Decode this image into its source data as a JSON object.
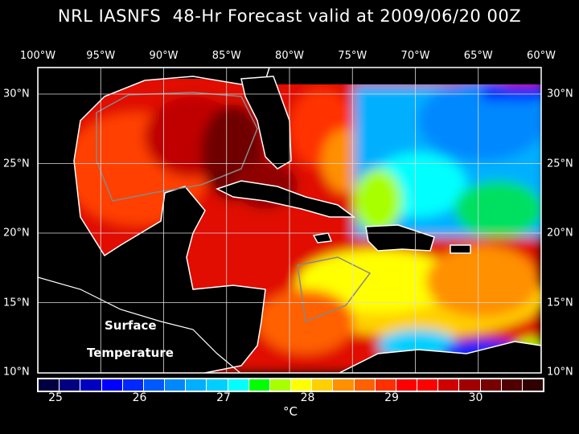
{
  "title": "NRL IASNFS  48-Hr Forecast valid at 2009/06/20 00Z",
  "map": {
    "region": "Gulf of Mexico and Caribbean",
    "lon_labels": [
      "100°W",
      "95°W",
      "90°W",
      "85°W",
      "80°W",
      "75°W",
      "70°W",
      "65°W",
      "60°W"
    ],
    "lat_labels": [
      "30°N",
      "25°N",
      "20°N",
      "15°N",
      "10°N"
    ],
    "lon_range": [
      -100,
      -60
    ],
    "lat_range": [
      10,
      31.9
    ],
    "variable_label_line1": "Surface",
    "variable_label_line2": "Temperature"
  },
  "colorbar": {
    "colors": [
      "#000040",
      "#000080",
      "#0000c0",
      "#0000ff",
      "#0028ff",
      "#0058ff",
      "#0088ff",
      "#00b0ff",
      "#00d0ff",
      "#00ffff",
      "#00ff00",
      "#a8ff00",
      "#ffff00",
      "#ffd000",
      "#ff9000",
      "#ff6000",
      "#ff3000",
      "#ff0000",
      "#ff0000",
      "#d00000",
      "#a00000",
      "#780000",
      "#500000",
      "#300000"
    ],
    "tick_labels": [
      "25",
      "26",
      "27",
      "28",
      "29",
      "30"
    ],
    "unit": "°C"
  }
}
